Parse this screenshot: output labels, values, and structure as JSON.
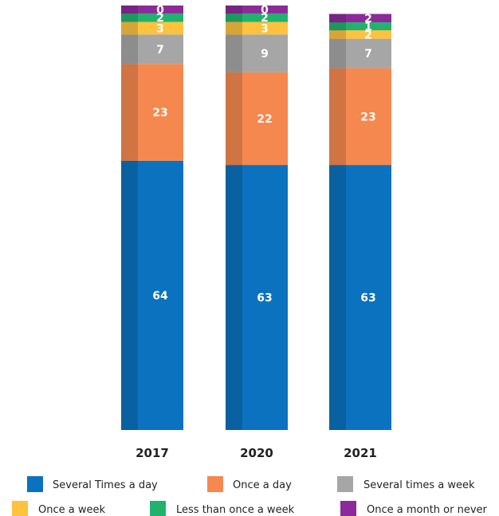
{
  "chart_data": {
    "type": "bar",
    "stacked": true,
    "categories": [
      "2017",
      "2020",
      "2021"
    ],
    "series": [
      {
        "name": "Several Times a day",
        "color": "#0a72bf",
        "values": [
          64,
          63,
          63
        ]
      },
      {
        "name": "Once a day",
        "color": "#f5884f",
        "values": [
          23,
          22,
          23
        ]
      },
      {
        "name": "Several times a week",
        "color": "#a6a6a6",
        "values": [
          7,
          9,
          7
        ]
      },
      {
        "name": "Once a week",
        "color": "#fdc23e",
        "values": [
          3,
          3,
          2
        ]
      },
      {
        "name": "Less than once a week",
        "color": "#21b26e",
        "values": [
          2,
          2,
          1
        ]
      },
      {
        "name": "Once a month or never",
        "color": "#8c2a99",
        "values": [
          0,
          0,
          2
        ]
      }
    ],
    "title": "",
    "xlabel": "",
    "ylabel": "",
    "grid": false,
    "legend": "bottom"
  }
}
